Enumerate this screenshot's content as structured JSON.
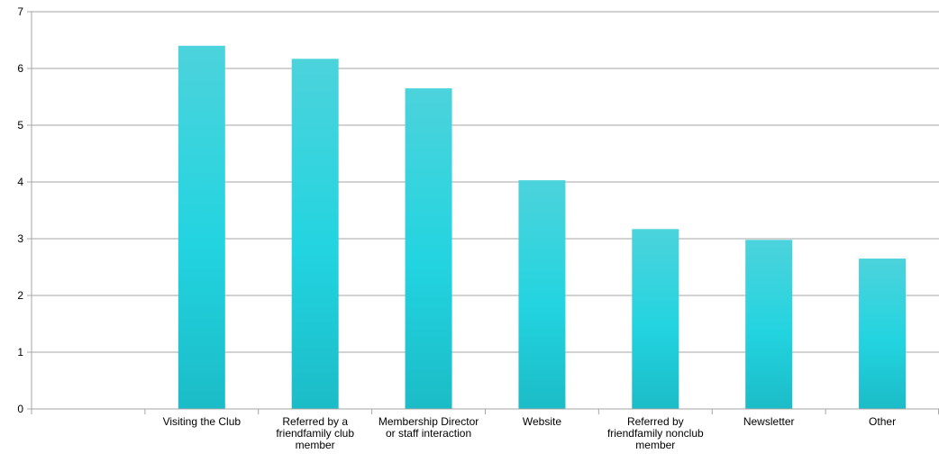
{
  "chart_data": {
    "type": "bar",
    "categories": [
      "",
      "Visiting the Club",
      "Referred by a friendfamily club member",
      "Membership Director or staff interaction",
      "Website",
      "Referred by friendfamily nonclub member",
      "Newsletter",
      "Other"
    ],
    "category_lines": [
      [],
      [
        "Visiting the Club"
      ],
      [
        "Referred by a",
        "friendfamily club",
        "member"
      ],
      [
        "Membership Director",
        "or staff interaction"
      ],
      [
        "Website"
      ],
      [
        "Referred by",
        "friendfamily nonclub",
        "member"
      ],
      [
        "Newsletter"
      ],
      [
        "Other"
      ]
    ],
    "values": [
      null,
      6.4,
      6.17,
      5.65,
      4.03,
      3.17,
      2.98,
      2.65
    ],
    "ylim": [
      0,
      7
    ],
    "yticks": [
      "0",
      "1",
      "2",
      "3",
      "4",
      "5",
      "6",
      "7"
    ],
    "grid": true,
    "legend": "none",
    "title": "",
    "xlabel": "",
    "ylabel": ""
  },
  "colors": {
    "bar_top": "#4cd3dc",
    "bar_mid": "#22d4e0",
    "bar_bottom": "#1bbcc7",
    "grid": "#a6a6a6",
    "axis": "#a6a6a6"
  }
}
